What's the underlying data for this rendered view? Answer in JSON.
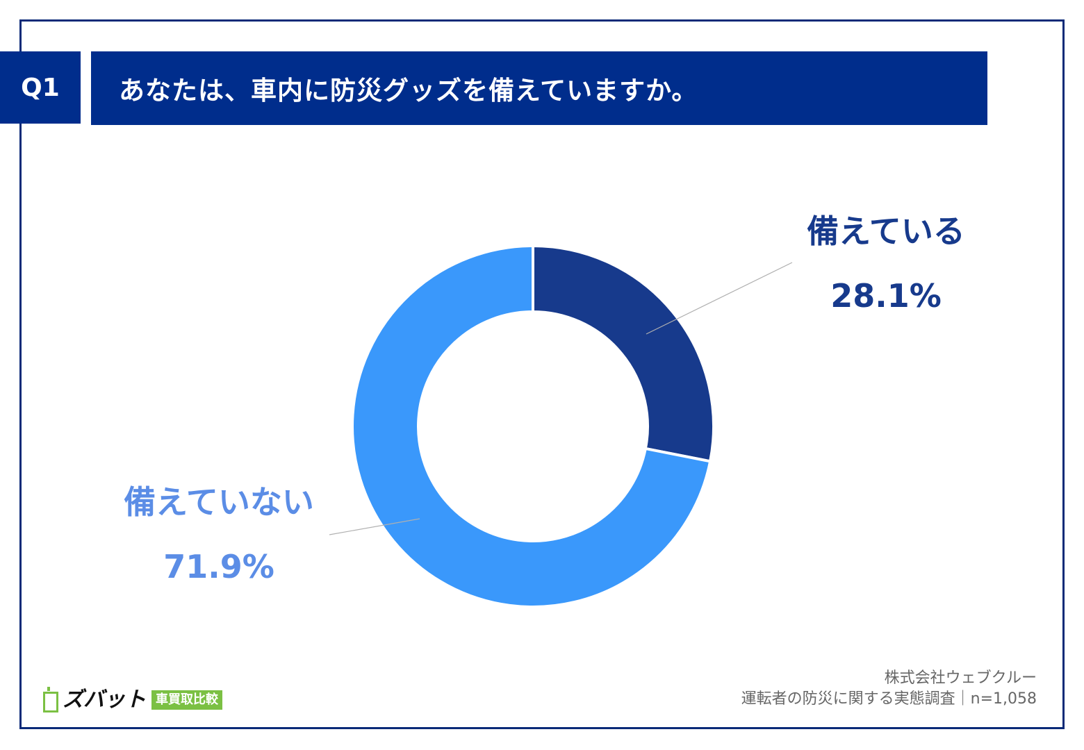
{
  "header": {
    "q_label": "Q1",
    "question": "あなたは、車内に防災グッズを備えていますか。"
  },
  "chart_data": {
    "type": "pie",
    "donut": true,
    "slices": [
      {
        "label": "備えている",
        "value": 28.1,
        "display": "28.1%",
        "color": "#173a8c"
      },
      {
        "label": "備えていない",
        "value": 71.9,
        "display": "71.9%",
        "color": "#3a98fb"
      }
    ]
  },
  "label_colors": {
    "yes": "#173a8c",
    "no": "#5b8de6"
  },
  "footer": {
    "company": "株式会社ウェブクルー",
    "survey": "運転者の防災に関する実態調査｜n=1,058",
    "logo_name": "ズバット",
    "logo_badge": "車買取比較"
  }
}
